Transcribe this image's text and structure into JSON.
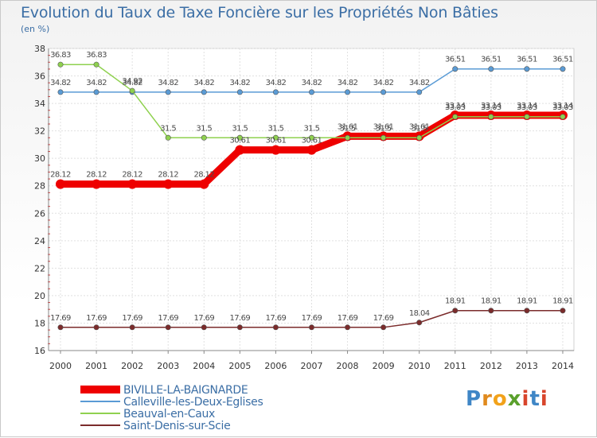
{
  "chart_data": {
    "type": "line",
    "title": "Evolution du Taux de Taxe Foncière sur les Propriétés Non Bâties",
    "ylabel": "(en %)",
    "xlabel": "",
    "ylim": [
      16,
      38
    ],
    "yticks": [
      16,
      18,
      20,
      22,
      24,
      26,
      28,
      30,
      32,
      34,
      36,
      38
    ],
    "x": [
      "2000",
      "2001",
      "2002",
      "2003",
      "2004",
      "2005",
      "2006",
      "2007",
      "2008",
      "2009",
      "2010",
      "2011",
      "2012",
      "2013",
      "2014"
    ],
    "series": [
      {
        "name": "BIVILLE-LA-BAIGNARDE",
        "color": "#ee0000",
        "values": [
          28.12,
          28.12,
          28.12,
          28.12,
          28.12,
          30.61,
          30.61,
          30.61,
          31.61,
          31.61,
          31.61,
          33.14,
          33.14,
          33.14,
          33.14
        ],
        "labels": [
          "28.12",
          "28.12",
          "28.12",
          "28.12",
          "28.12",
          "30.61",
          "30.61",
          "30.61",
          "31.61",
          "31.61",
          "31.61",
          "33.14",
          "33.14",
          "33.14",
          "33.14"
        ]
      },
      {
        "name": "Calleville-les-Deux-Eglises",
        "color": "#5a9bd5",
        "values": [
          34.82,
          34.82,
          34.82,
          34.82,
          34.82,
          34.82,
          34.82,
          34.82,
          34.82,
          34.82,
          34.82,
          36.51,
          36.51,
          36.51,
          36.51
        ],
        "labels": [
          "34.82",
          "34.82",
          "34.82",
          "34.82",
          "34.82",
          "34.82",
          "34.82",
          "34.82",
          "34.82",
          "34.82",
          "34.82",
          "36.51",
          "36.51",
          "36.51",
          "36.51"
        ]
      },
      {
        "name": "Beauval-en-Caux",
        "color": "#8fd14f",
        "values": [
          36.83,
          36.83,
          34.92,
          31.5,
          31.5,
          31.5,
          31.5,
          31.5,
          31.5,
          31.5,
          31.5,
          33.03,
          33.03,
          33.03,
          33.03
        ],
        "labels": [
          "36.83",
          "36.83",
          "34.92",
          "31.5",
          "31.5",
          "31.5",
          "31.5",
          "31.5",
          "31.5",
          "31.5",
          "31.5",
          "33.03",
          "33.03",
          "33.03",
          "33.03"
        ]
      },
      {
        "name": "Saint-Denis-sur-Scie",
        "color": "#7b2b2b",
        "values": [
          17.69,
          17.69,
          17.69,
          17.69,
          17.69,
          17.69,
          17.69,
          17.69,
          17.69,
          17.69,
          18.04,
          18.91,
          18.91,
          18.91,
          18.91
        ],
        "labels": [
          "17.69",
          "17.69",
          "17.69",
          "17.69",
          "17.69",
          "17.69",
          "17.69",
          "17.69",
          "17.69",
          "17.69",
          "18.04",
          "18.91",
          "18.91",
          "18.91",
          "18.91"
        ]
      }
    ],
    "legend_position": "bottom-left"
  },
  "logo": {
    "p": "P",
    "r": "r",
    "o": "o",
    "x": "x",
    "i": "i",
    "t": "t",
    "i2": "i"
  }
}
